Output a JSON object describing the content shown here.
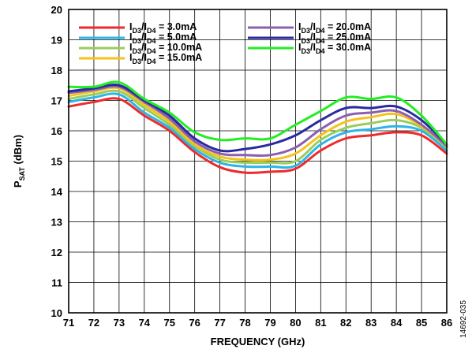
{
  "figure_id": "14692-035",
  "chart_data": {
    "type": "line",
    "xlabel": "FREQUENCY (GHz)",
    "ylabel": {
      "main": "P",
      "sub": "SAT",
      "rest": " (dBm)"
    },
    "xlim": [
      71,
      86
    ],
    "ylim": [
      10,
      20
    ],
    "x_ticks": [
      "71",
      "72",
      "73",
      "74",
      "75",
      "76",
      "77",
      "78",
      "79",
      "80",
      "81",
      "82",
      "83",
      "84",
      "85",
      "86"
    ],
    "y_ticks": [
      "10",
      "11",
      "12",
      "13",
      "14",
      "15",
      "16",
      "17",
      "18",
      "19",
      "20"
    ],
    "grid": true,
    "legend_position": "top",
    "x": [
      71,
      72,
      73,
      74,
      75,
      76,
      77,
      78,
      79,
      80,
      81,
      82,
      83,
      84,
      85,
      86
    ],
    "series": [
      {
        "name": "ID3/ID4 = 3.0mA",
        "label": {
          "a": "I",
          "s1": "D3",
          "b": "/I",
          "s2": "D4",
          "c": " = 3.0mA"
        },
        "color": "#ee2a2a",
        "values": [
          16.8,
          16.95,
          17.05,
          16.5,
          16.0,
          15.3,
          14.8,
          14.62,
          14.65,
          14.75,
          15.35,
          15.75,
          15.85,
          15.95,
          15.85,
          15.25
        ]
      },
      {
        "name": "ID3/ID4 = 5.0mA",
        "label": {
          "a": "I",
          "s1": "D3",
          "b": "/I",
          "s2": "D4",
          "c": " = 5.0mA"
        },
        "color": "#2db4e8",
        "values": [
          16.95,
          17.1,
          17.2,
          16.6,
          16.1,
          15.4,
          14.95,
          14.82,
          14.82,
          14.85,
          15.55,
          15.95,
          16.05,
          16.15,
          16.0,
          15.35
        ]
      },
      {
        "name": "ID3/ID4 = 10.0mA",
        "label": {
          "a": "I",
          "s1": "D3",
          "b": "/I",
          "s2": "D4",
          "c": " = 10.0mA"
        },
        "color": "#9acd5a",
        "values": [
          17.05,
          17.2,
          17.3,
          16.75,
          16.2,
          15.5,
          15.05,
          14.95,
          14.95,
          15.0,
          15.7,
          16.1,
          16.25,
          16.35,
          16.1,
          15.45
        ]
      },
      {
        "name": "ID3/ID4 = 15.0mA",
        "label": {
          "a": "I",
          "s1": "D3",
          "b": "/I",
          "s2": "D4",
          "c": " = 15.0mA"
        },
        "color": "#f5c21a",
        "values": [
          17.15,
          17.3,
          17.4,
          16.85,
          16.3,
          15.55,
          15.15,
          15.05,
          15.05,
          15.25,
          15.85,
          16.3,
          16.45,
          16.55,
          16.15,
          15.5
        ]
      },
      {
        "name": "ID3/ID4 = 20.0mA",
        "label": {
          "a": "I",
          "s1": "D3",
          "b": "/I",
          "s2": "D4",
          "c": " = 20.0mA"
        },
        "color": "#8a5fb0",
        "values": [
          17.25,
          17.35,
          17.45,
          16.95,
          16.4,
          15.65,
          15.25,
          15.2,
          15.2,
          15.45,
          16.05,
          16.5,
          16.6,
          16.65,
          16.2,
          15.5
        ]
      },
      {
        "name": "ID3/ID4 = 25.0mA",
        "label": {
          "a": "I",
          "s1": "D3",
          "b": "/I",
          "s2": "D4",
          "c": " = 25.0mA"
        },
        "color": "#2a2aa0",
        "values": [
          17.3,
          17.4,
          17.5,
          17.0,
          16.5,
          15.75,
          15.35,
          15.4,
          15.55,
          15.85,
          16.35,
          16.75,
          16.75,
          16.8,
          16.35,
          15.55
        ]
      },
      {
        "name": "ID3/ID4 = 30.0mA",
        "label": {
          "a": "I",
          "s1": "D3",
          "b": "/I",
          "s2": "D4",
          "c": " = 30.0mA"
        },
        "color": "#22ee22",
        "values": [
          17.45,
          17.45,
          17.6,
          17.05,
          16.6,
          15.95,
          15.7,
          15.75,
          15.75,
          16.2,
          16.65,
          17.1,
          17.05,
          17.1,
          16.5,
          15.55
        ]
      }
    ]
  }
}
